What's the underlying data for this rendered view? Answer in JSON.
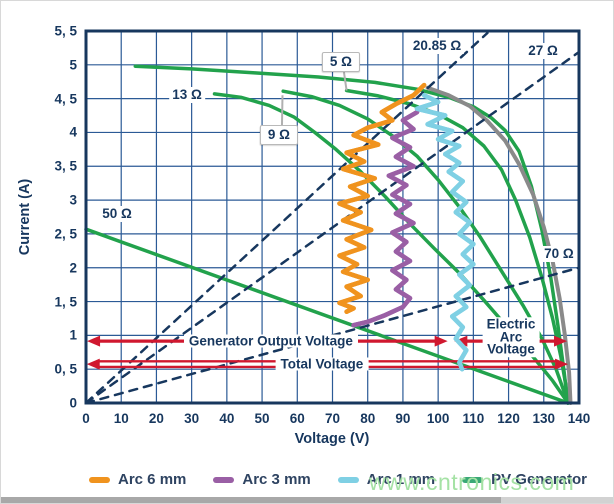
{
  "watermark": "www.cntronics.com",
  "axes": {
    "x": {
      "label": "Voltage (V)",
      "min": 0,
      "max": 140,
      "step": 10,
      "ticks": [
        "0",
        "10",
        "20",
        "30",
        "40",
        "50",
        "60",
        "70",
        "80",
        "90",
        "100",
        "110",
        "120",
        "130",
        "140"
      ]
    },
    "y": {
      "label": "Current (A)",
      "min": 0,
      "max": 5.5,
      "step": 0.5,
      "ticks": [
        "0",
        "0, 5",
        "1",
        "1, 5",
        "2",
        "2, 5",
        "3",
        "3, 5",
        "4",
        "4, 5",
        "5",
        "5, 5"
      ]
    }
  },
  "colors": {
    "navy": "#17375e",
    "grid": "#2b5a96",
    "green": "#22a24c",
    "gray_curve": "#8a8a8a",
    "orange": "#f0931e",
    "purple": "#9a5fa5",
    "cyan": "#7fd0e4",
    "red": "#d0182f",
    "leader": "#b0b0b0",
    "watermark_green": "#a5e2a5"
  },
  "resistance_labels": [
    {
      "text": "5 Ω",
      "v": 72.4,
      "i": 5.04,
      "boxed": true,
      "leader_to": {
        "v": 74.0,
        "i": 4.62
      }
    },
    {
      "text": "9 Ω",
      "v": 54.8,
      "i": 3.96,
      "boxed": true,
      "leader_to": {
        "v": 55.8,
        "i": 4.55
      }
    },
    {
      "text": "13 Ω",
      "v": 28.7,
      "i": 4.56,
      "boxed": false
    },
    {
      "text": "20.85 Ω",
      "v": 99.7,
      "i": 5.28,
      "boxed": false
    },
    {
      "text": "27 Ω",
      "v": 129.8,
      "i": 5.2,
      "boxed": false
    },
    {
      "text": "50 Ω",
      "v": 8.8,
      "i": 2.79,
      "boxed": false
    },
    {
      "text": "70 Ω",
      "v": 134.3,
      "i": 2.2,
      "boxed": false
    }
  ],
  "annotations": {
    "generator_output_voltage": {
      "text": "Generator Output Voltage",
      "i": 0.915,
      "v_from": 0.3,
      "v_to": 102.7,
      "text_v": 52.5,
      "double": false
    },
    "electric_arc_voltage": {
      "line1": "Electric",
      "line2": "Arc",
      "line3": "Voltage",
      "i": 0.915,
      "v_from": 104.6,
      "v_to": 136.6,
      "text_v": 120.7,
      "double": false
    },
    "total_voltage": {
      "text": "Total Voltage",
      "i": 0.575,
      "v_from": 0.2,
      "v_to": 136.9,
      "text_v": 67.0,
      "double": true
    }
  },
  "legend": [
    {
      "label": "Arc 6 mm",
      "color": "#f0931e"
    },
    {
      "label": "Arc 3 mm",
      "color": "#9a5fa5"
    },
    {
      "label": "Arc 1 mm",
      "color": "#7fd0e4"
    },
    {
      "label": "PV Generator",
      "color": "#3aa876"
    }
  ],
  "chart_data": {
    "type": "line",
    "title": "",
    "xlabel": "Voltage (V)",
    "ylabel": "Current (A)",
    "xlim": [
      0,
      140
    ],
    "ylim": [
      0,
      5.5
    ],
    "grid": true,
    "legend_position": "bottom",
    "series": [
      {
        "name": "pv-generator",
        "color": "#22a24c",
        "width": 3.5,
        "dash": null,
        "points": [
          [
            14,
            4.98
          ],
          [
            30,
            4.94
          ],
          [
            48,
            4.88
          ],
          [
            66,
            4.82
          ],
          [
            82,
            4.74
          ],
          [
            94,
            4.64
          ],
          [
            103,
            4.52
          ],
          [
            110,
            4.38
          ],
          [
            115,
            4.22
          ],
          [
            119,
            4.03
          ],
          [
            123,
            3.72
          ],
          [
            126.5,
            3.2
          ],
          [
            129.5,
            2.55
          ],
          [
            132,
            1.85
          ],
          [
            134,
            1.15
          ],
          [
            135.8,
            0.45
          ],
          [
            136.8,
            0
          ]
        ]
      },
      {
        "name": "arc-curve-5-ohm",
        "color": "#22a24c",
        "width": 3.5,
        "dash": null,
        "points": [
          [
            74,
            4.62
          ],
          [
            83,
            4.54
          ],
          [
            92,
            4.42
          ],
          [
            100,
            4.27
          ],
          [
            107,
            4.07
          ],
          [
            113,
            3.8
          ],
          [
            118,
            3.45
          ],
          [
            122,
            3.0
          ],
          [
            126,
            2.45
          ],
          [
            129.5,
            1.85
          ],
          [
            132.5,
            1.25
          ],
          [
            134.8,
            0.7
          ],
          [
            136.3,
            0.25
          ],
          [
            136.9,
            0
          ]
        ]
      },
      {
        "name": "arc-curve-9-ohm",
        "color": "#22a24c",
        "width": 3.5,
        "dash": null,
        "points": [
          [
            56,
            4.61
          ],
          [
            64,
            4.53
          ],
          [
            72,
            4.4
          ],
          [
            80,
            4.2
          ],
          [
            87,
            3.95
          ],
          [
            94,
            3.65
          ],
          [
            100,
            3.3
          ],
          [
            106,
            2.9
          ],
          [
            112,
            2.45
          ],
          [
            118,
            1.95
          ],
          [
            124,
            1.45
          ],
          [
            129.5,
            0.95
          ],
          [
            133.5,
            0.5
          ],
          [
            136.9,
            0
          ]
        ]
      },
      {
        "name": "arc-curve-13-ohm",
        "color": "#22a24c",
        "width": 3.5,
        "dash": null,
        "points": [
          [
            36.5,
            4.57
          ],
          [
            44,
            4.52
          ],
          [
            52,
            4.4
          ],
          [
            59,
            4.23
          ],
          [
            65,
            4.0
          ],
          [
            71,
            3.75
          ],
          [
            78,
            3.42
          ],
          [
            85,
            3.05
          ],
          [
            92,
            2.65
          ],
          [
            99,
            2.28
          ],
          [
            106,
            1.92
          ],
          [
            113,
            1.52
          ],
          [
            120,
            1.1
          ],
          [
            127,
            0.68
          ],
          [
            132.5,
            0.33
          ],
          [
            136.9,
            0
          ]
        ]
      },
      {
        "name": "arc-curve-50-ohm",
        "color": "#22a24c",
        "width": 3.5,
        "dash": null,
        "points": [
          [
            0,
            2.57
          ],
          [
            136.9,
            0
          ]
        ]
      },
      {
        "name": "arc-curve-20-85-ohm",
        "color": "#8a8a8a",
        "width": 4,
        "dash": null,
        "points": [
          [
            97,
            4.66
          ],
          [
            103,
            4.55
          ],
          [
            109,
            4.39
          ],
          [
            114,
            4.17
          ],
          [
            119,
            3.88
          ],
          [
            123,
            3.53
          ],
          [
            127,
            3.08
          ],
          [
            130,
            2.6
          ],
          [
            132.5,
            2.1
          ],
          [
            134.5,
            1.55
          ],
          [
            136,
            1.0
          ],
          [
            137.2,
            0.45
          ],
          [
            137.6,
            0
          ]
        ]
      },
      {
        "name": "load-line-20-85-ohm",
        "color": "#17375e",
        "width": 2.5,
        "dash": "8 7",
        "points": [
          [
            0,
            0
          ],
          [
            114,
            5.47
          ]
        ]
      },
      {
        "name": "load-line-27-ohm",
        "color": "#17375e",
        "width": 2.5,
        "dash": "8 7",
        "points": [
          [
            0,
            0
          ],
          [
            140,
            5.19
          ]
        ]
      },
      {
        "name": "load-line-70-ohm",
        "color": "#17375e",
        "width": 2.5,
        "dash": "8 7",
        "points": [
          [
            0,
            0
          ],
          [
            140,
            2.0
          ]
        ]
      },
      {
        "name": "arc-6mm",
        "color": "#f0931e",
        "width": 4.5,
        "dash": null,
        "points": [
          [
            96,
            4.7
          ],
          [
            93,
            4.55
          ],
          [
            88,
            4.42
          ],
          [
            84,
            4.3
          ],
          [
            87,
            4.18
          ],
          [
            80,
            4.07
          ],
          [
            76,
            3.96
          ],
          [
            83,
            3.82
          ],
          [
            74,
            3.7
          ],
          [
            79,
            3.57
          ],
          [
            73,
            3.46
          ],
          [
            82,
            3.32
          ],
          [
            75,
            3.2
          ],
          [
            80,
            3.06
          ],
          [
            72,
            2.95
          ],
          [
            78,
            2.82
          ],
          [
            73,
            2.7
          ],
          [
            81,
            2.56
          ],
          [
            74,
            2.42
          ],
          [
            79,
            2.3
          ],
          [
            72,
            2.18
          ],
          [
            77,
            2.05
          ],
          [
            73,
            1.94
          ],
          [
            80,
            1.82
          ],
          [
            74,
            1.72
          ],
          [
            78,
            1.58
          ],
          [
            72,
            1.48
          ],
          [
            76,
            1.4
          ],
          [
            74,
            1.35
          ]
        ]
      },
      {
        "name": "arc-3mm",
        "color": "#9a5fa5",
        "width": 4.5,
        "dash": null,
        "points": [
          [
            94,
            4.3
          ],
          [
            90,
            4.18
          ],
          [
            93,
            4.05
          ],
          [
            87,
            3.92
          ],
          [
            92,
            3.78
          ],
          [
            88,
            3.64
          ],
          [
            93,
            3.5
          ],
          [
            86,
            3.36
          ],
          [
            91,
            3.22
          ],
          [
            87,
            3.08
          ],
          [
            92,
            2.94
          ],
          [
            88,
            2.8
          ],
          [
            93,
            2.66
          ],
          [
            87,
            2.52
          ],
          [
            91,
            2.38
          ],
          [
            88,
            2.24
          ],
          [
            92,
            2.1
          ],
          [
            87,
            1.96
          ],
          [
            91,
            1.82
          ],
          [
            88,
            1.68
          ],
          [
            92,
            1.55
          ],
          [
            90,
            1.42
          ],
          [
            85,
            1.3
          ],
          [
            80,
            1.2
          ],
          [
            76,
            1.15
          ]
        ]
      },
      {
        "name": "arc-1mm",
        "color": "#7fd0e4",
        "width": 4.5,
        "dash": null,
        "points": [
          [
            96,
            4.55
          ],
          [
            100,
            4.45
          ],
          [
            94,
            4.35
          ],
          [
            102,
            4.25
          ],
          [
            97,
            4.12
          ],
          [
            104,
            4.02
          ],
          [
            100,
            3.9
          ],
          [
            106,
            3.8
          ],
          [
            102,
            3.68
          ],
          [
            106,
            3.55
          ],
          [
            103,
            3.42
          ],
          [
            107,
            3.28
          ],
          [
            104,
            3.12
          ],
          [
            108,
            2.97
          ],
          [
            105,
            2.82
          ],
          [
            109,
            2.67
          ],
          [
            106,
            2.5
          ],
          [
            110,
            2.35
          ],
          [
            107,
            2.2
          ],
          [
            110,
            2.05
          ],
          [
            106,
            1.9
          ],
          [
            109,
            1.74
          ],
          [
            105,
            1.58
          ],
          [
            108,
            1.42
          ],
          [
            104,
            1.28
          ],
          [
            107,
            1.12
          ],
          [
            105,
            0.95
          ],
          [
            108,
            0.78
          ],
          [
            106,
            0.6
          ],
          [
            106.8,
            0.5
          ]
        ]
      }
    ]
  }
}
